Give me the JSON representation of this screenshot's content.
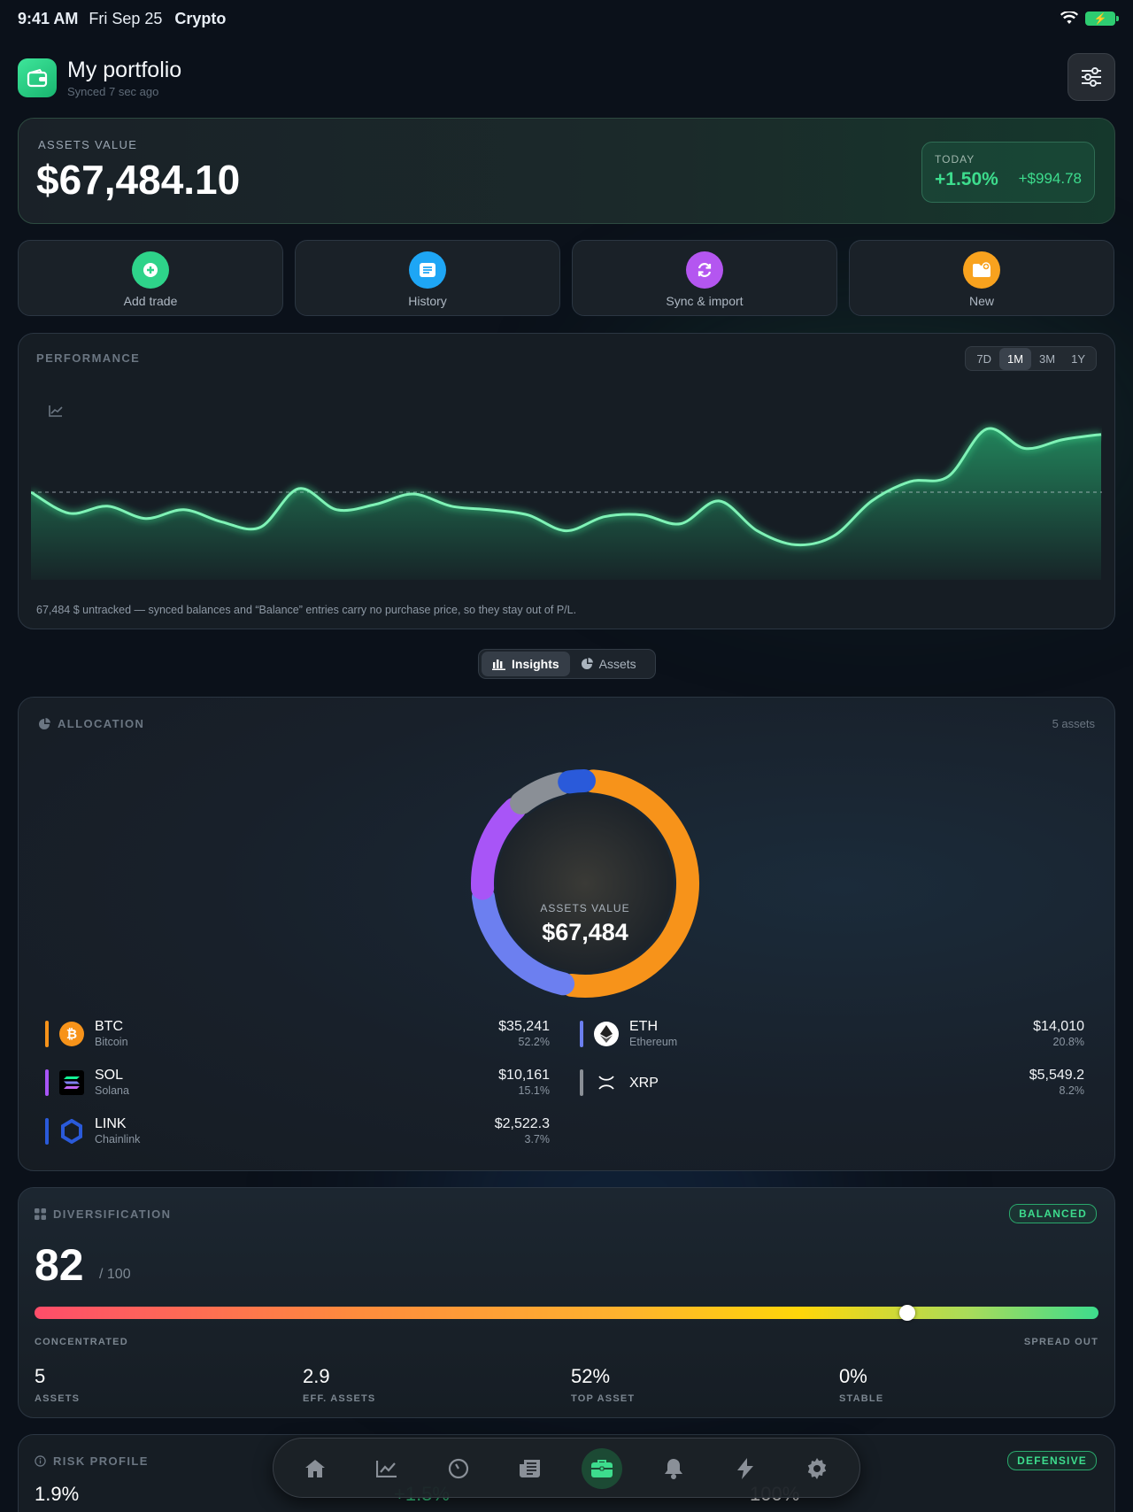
{
  "status": {
    "time": "9:41 AM",
    "date": "Fri Sep 25",
    "app": "Crypto"
  },
  "header": {
    "title": "My portfolio",
    "subtitle": "Synced 7 sec ago"
  },
  "assets": {
    "label": "ASSETS VALUE",
    "value": "$67,484.10",
    "today_label": "TODAY",
    "today_pct": "+1.50%",
    "today_amt": "+$994.78"
  },
  "actions": [
    {
      "label": "Add trade",
      "icon": "plus-circle-icon",
      "color": "#2ed38a"
    },
    {
      "label": "History",
      "icon": "list-icon",
      "color": "#1ea6f5"
    },
    {
      "label": "Sync & import",
      "icon": "sync-icon",
      "color": "#b456f0"
    },
    {
      "label": "New",
      "icon": "folder-plus-icon",
      "color": "#f8a21e"
    }
  ],
  "performance": {
    "title": "PERFORMANCE",
    "ranges": [
      "7D",
      "1M",
      "3M",
      "1Y"
    ],
    "selected_range": "1M",
    "note": "67,484 $ untracked — synced balances and “Balance” entries carry no purchase price, so they stay out of P/L."
  },
  "chart_data": {
    "type": "area",
    "title": "",
    "xlabel": "",
    "ylabel": "",
    "baseline": 50,
    "values": [
      50,
      38,
      42,
      35,
      40,
      33,
      30,
      52,
      40,
      43,
      49,
      42,
      40,
      37,
      28,
      36,
      37,
      32,
      45,
      28,
      20,
      25,
      45,
      56,
      59,
      86,
      75,
      80,
      83
    ],
    "ylim": [
      0,
      100
    ],
    "grid": false,
    "color": "#3ddc8d"
  },
  "segment": {
    "insights": "Insights",
    "assets": "Assets",
    "selected": "Insights"
  },
  "allocation": {
    "title": "ALLOCATION",
    "count": "5 assets",
    "center_label": "ASSETS VALUE",
    "center_value": "$67,484",
    "items": [
      {
        "symbol": "BTC",
        "name": "Bitcoin",
        "amount": "$35,241",
        "pct": "52.2%",
        "share": 52.2,
        "color": "#f7931a",
        "icon": "bitcoin-icon"
      },
      {
        "symbol": "ETH",
        "name": "Ethereum",
        "amount": "$14,010",
        "pct": "20.8%",
        "share": 20.8,
        "color": "#6c7ff0",
        "icon": "ethereum-icon"
      },
      {
        "symbol": "SOL",
        "name": "Solana",
        "amount": "$10,161",
        "pct": "15.1%",
        "share": 15.1,
        "color": "#a855f7",
        "icon": "solana-icon"
      },
      {
        "symbol": "XRP",
        "name": "",
        "amount": "$5,549.2",
        "pct": "8.2%",
        "share": 8.2,
        "color": "#8a8f96",
        "icon": "xrp-icon"
      },
      {
        "symbol": "LINK",
        "name": "Chainlink",
        "amount": "$2,522.3",
        "pct": "3.7%",
        "share": 3.7,
        "color": "#2a5ada",
        "icon": "chainlink-icon"
      }
    ]
  },
  "diversification": {
    "title": "DIVERSIFICATION",
    "badge": "BALANCED",
    "score": "82",
    "score_of": "/ 100",
    "score_fraction": 0.82,
    "left_label": "CONCENTRATED",
    "right_label": "SPREAD OUT",
    "stats": [
      {
        "value": "5",
        "label": "ASSETS"
      },
      {
        "value": "2.9",
        "label": "EFF. ASSETS"
      },
      {
        "value": "52%",
        "label": "TOP ASSET"
      },
      {
        "value": "0%",
        "label": "STABLE"
      }
    ]
  },
  "risk": {
    "title": "RISK PROFILE",
    "badge": "DEFENSIVE",
    "values": [
      "1.9%",
      "+1.5%",
      "100%"
    ]
  },
  "nav": {
    "items": [
      "home-icon",
      "chart-icon",
      "gauge-icon",
      "news-icon",
      "portfolio-icon",
      "bell-icon",
      "bolt-icon",
      "settings-icon"
    ],
    "active": "portfolio-icon"
  }
}
